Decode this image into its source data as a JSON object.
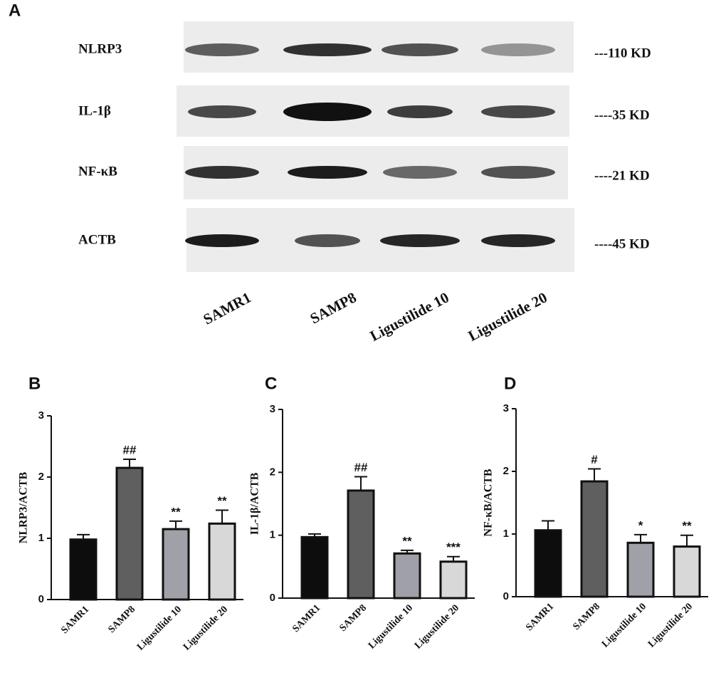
{
  "blot": {
    "panel_label": "A",
    "rows": [
      {
        "protein": "NLRP3",
        "size": "---110 KD"
      },
      {
        "protein": "IL-1β",
        "size": "----35 KD"
      },
      {
        "protein": "NF-κB",
        "size": "----21 KD"
      },
      {
        "protein": "ACTB",
        "size": "----45 KD"
      }
    ],
    "lanes": [
      "SAMR1",
      "SAMP8",
      "Ligustilide 10",
      "Ligustilide 20"
    ]
  },
  "chart_data": [
    {
      "type": "bar",
      "panel_label": "B",
      "ylabel": "NLRP3/ACTB",
      "categories": [
        "SAMR1",
        "SAMP8",
        "Ligustilide 10",
        "Ligustilide 20"
      ],
      "values": [
        0.98,
        2.15,
        1.15,
        1.24
      ],
      "errors": [
        0.08,
        0.14,
        0.13,
        0.22
      ],
      "annotations": [
        null,
        "##",
        "**",
        "**"
      ],
      "colors": [
        "#0d0d0d",
        "#5f5f5f",
        "#a0a0a8",
        "#d8d8d8"
      ],
      "ylim": [
        0,
        3
      ],
      "yticks": [
        0,
        1,
        2,
        3
      ]
    },
    {
      "type": "bar",
      "panel_label": "C",
      "ylabel": "IL-1β/ACTB",
      "categories": [
        "SAMR1",
        "SAMP8",
        "Ligustilide 10",
        "Ligustilide 20"
      ],
      "values": [
        0.97,
        1.71,
        0.71,
        0.58
      ],
      "errors": [
        0.05,
        0.22,
        0.05,
        0.08
      ],
      "annotations": [
        null,
        "##",
        "**",
        "***"
      ],
      "colors": [
        "#0d0d0d",
        "#5f5f5f",
        "#a0a0a8",
        "#d8d8d8"
      ],
      "ylim": [
        0,
        3
      ],
      "yticks": [
        0,
        1,
        2,
        3
      ]
    },
    {
      "type": "bar",
      "panel_label": "D",
      "ylabel": "NF-κB/ACTB",
      "categories": [
        "SAMR1",
        "SAMP8",
        "Ligustilide 10",
        "Ligustilide 20"
      ],
      "values": [
        1.06,
        1.84,
        0.86,
        0.8
      ],
      "errors": [
        0.15,
        0.2,
        0.13,
        0.18
      ],
      "annotations": [
        null,
        "#",
        "*",
        "**"
      ],
      "colors": [
        "#0d0d0d",
        "#5f5f5f",
        "#a0a0a8",
        "#d8d8d8"
      ],
      "ylim": [
        0,
        3
      ],
      "yticks": [
        0,
        1,
        2,
        3
      ]
    }
  ]
}
